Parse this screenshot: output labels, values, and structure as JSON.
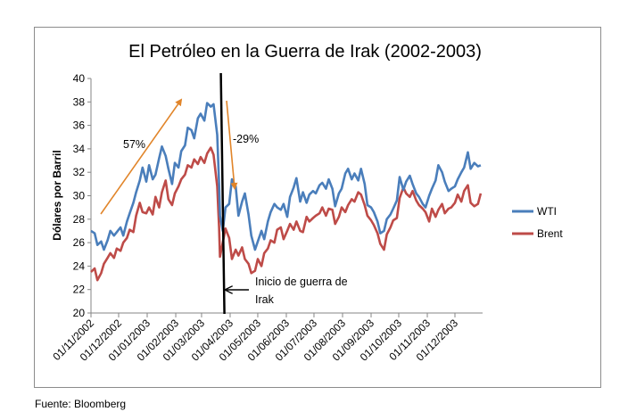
{
  "chart_data": {
    "type": "line",
    "title": "El Petróleo en la Guerra de Irak (2002-2003)",
    "ylabel": "Dólares por Barril",
    "xlabel": "",
    "ylim": [
      20,
      40
    ],
    "yticks": [
      20,
      22,
      24,
      26,
      28,
      30,
      32,
      34,
      36,
      38,
      40
    ],
    "xlim": [
      "2002-11-01",
      "2003-12-31"
    ],
    "xticks": [
      "01/11/2002",
      "01/12/2002",
      "01/01/2003",
      "01/02/2003",
      "01/03/2003",
      "01/04/2003",
      "01/05/2003",
      "01/06/2003",
      "01/07/2003",
      "01/08/2003",
      "01/09/2003",
      "01/10/2003",
      "01/11/2003",
      "01/12/2003"
    ],
    "grid": false,
    "legend_position": "right",
    "series": [
      {
        "name": "WTI",
        "color": "#4a7ebb",
        "points": [
          [
            "2002-11-01",
            27.0
          ],
          [
            "2002-11-05",
            26.8
          ],
          [
            "2002-11-08",
            25.8
          ],
          [
            "2002-11-12",
            26.1
          ],
          [
            "2002-11-15",
            25.4
          ],
          [
            "2002-11-19",
            26.2
          ],
          [
            "2002-11-22",
            27.0
          ],
          [
            "2002-11-26",
            26.6
          ],
          [
            "2002-11-29",
            26.9
          ],
          [
            "2002-12-03",
            27.3
          ],
          [
            "2002-12-06",
            26.6
          ],
          [
            "2002-12-10",
            27.8
          ],
          [
            "2002-12-13",
            28.5
          ],
          [
            "2002-12-17",
            29.4
          ],
          [
            "2002-12-20",
            30.3
          ],
          [
            "2002-12-24",
            31.3
          ],
          [
            "2002-12-27",
            32.4
          ],
          [
            "2002-12-31",
            31.2
          ],
          [
            "2003-01-03",
            32.6
          ],
          [
            "2003-01-07",
            31.4
          ],
          [
            "2003-01-10",
            31.8
          ],
          [
            "2003-01-14",
            33.2
          ],
          [
            "2003-01-17",
            34.2
          ],
          [
            "2003-01-21",
            33.4
          ],
          [
            "2003-01-24",
            32.3
          ],
          [
            "2003-01-28",
            31.0
          ],
          [
            "2003-01-31",
            32.8
          ],
          [
            "2003-02-04",
            32.4
          ],
          [
            "2003-02-07",
            33.8
          ],
          [
            "2003-02-11",
            34.3
          ],
          [
            "2003-02-14",
            35.8
          ],
          [
            "2003-02-18",
            35.6
          ],
          [
            "2003-02-21",
            34.9
          ],
          [
            "2003-02-25",
            36.6
          ],
          [
            "2003-02-28",
            37.0
          ],
          [
            "2003-03-04",
            36.4
          ],
          [
            "2003-03-07",
            37.9
          ],
          [
            "2003-03-11",
            37.6
          ],
          [
            "2003-03-14",
            37.8
          ],
          [
            "2003-03-18",
            35.2
          ],
          [
            "2003-03-20",
            31.0
          ],
          [
            "2003-03-21",
            28.3
          ],
          [
            "2003-03-24",
            27.0
          ],
          [
            "2003-03-27",
            29.0
          ],
          [
            "2003-03-31",
            29.3
          ],
          [
            "2003-04-03",
            31.4
          ],
          [
            "2003-04-07",
            30.8
          ],
          [
            "2003-04-10",
            28.3
          ],
          [
            "2003-04-14",
            29.5
          ],
          [
            "2003-04-17",
            30.2
          ],
          [
            "2003-04-21",
            28.4
          ],
          [
            "2003-04-24",
            26.6
          ],
          [
            "2003-04-28",
            25.4
          ],
          [
            "2003-05-01",
            26.1
          ],
          [
            "2003-05-05",
            27.0
          ],
          [
            "2003-05-08",
            26.3
          ],
          [
            "2003-05-12",
            27.8
          ],
          [
            "2003-05-15",
            28.6
          ],
          [
            "2003-05-19",
            29.3
          ],
          [
            "2003-05-22",
            29.0
          ],
          [
            "2003-05-26",
            28.8
          ],
          [
            "2003-05-29",
            29.3
          ],
          [
            "2003-06-02",
            28.2
          ],
          [
            "2003-06-05",
            29.9
          ],
          [
            "2003-06-09",
            30.7
          ],
          [
            "2003-06-12",
            31.5
          ],
          [
            "2003-06-16",
            29.5
          ],
          [
            "2003-06-19",
            30.3
          ],
          [
            "2003-06-23",
            29.4
          ],
          [
            "2003-06-26",
            30.1
          ],
          [
            "2003-06-30",
            30.4
          ],
          [
            "2003-07-03",
            30.2
          ],
          [
            "2003-07-07",
            30.9
          ],
          [
            "2003-07-10",
            31.1
          ],
          [
            "2003-07-14",
            30.6
          ],
          [
            "2003-07-17",
            31.4
          ],
          [
            "2003-07-21",
            30.6
          ],
          [
            "2003-07-24",
            29.1
          ],
          [
            "2003-07-28",
            30.2
          ],
          [
            "2003-07-31",
            30.6
          ],
          [
            "2003-08-04",
            31.9
          ],
          [
            "2003-08-07",
            32.3
          ],
          [
            "2003-08-11",
            31.4
          ],
          [
            "2003-08-14",
            31.9
          ],
          [
            "2003-08-18",
            31.3
          ],
          [
            "2003-08-21",
            32.3
          ],
          [
            "2003-08-25",
            31.0
          ],
          [
            "2003-08-28",
            29.2
          ],
          [
            "2003-09-01",
            29.0
          ],
          [
            "2003-09-04",
            28.6
          ],
          [
            "2003-09-08",
            27.8
          ],
          [
            "2003-09-11",
            26.8
          ],
          [
            "2003-09-15",
            27.0
          ],
          [
            "2003-09-18",
            28.0
          ],
          [
            "2003-09-22",
            28.4
          ],
          [
            "2003-09-25",
            28.9
          ],
          [
            "2003-09-29",
            29.6
          ],
          [
            "2003-10-02",
            31.6
          ],
          [
            "2003-10-06",
            30.5
          ],
          [
            "2003-10-09",
            31.2
          ],
          [
            "2003-10-13",
            31.7
          ],
          [
            "2003-10-16",
            31.0
          ],
          [
            "2003-10-20",
            30.2
          ],
          [
            "2003-10-23",
            29.9
          ],
          [
            "2003-10-27",
            29.3
          ],
          [
            "2003-10-30",
            29.0
          ],
          [
            "2003-11-03",
            30.0
          ],
          [
            "2003-11-06",
            30.6
          ],
          [
            "2003-11-10",
            31.3
          ],
          [
            "2003-11-13",
            32.6
          ],
          [
            "2003-11-17",
            32.0
          ],
          [
            "2003-11-20",
            31.2
          ],
          [
            "2003-11-24",
            30.4
          ],
          [
            "2003-11-27",
            30.6
          ],
          [
            "2003-12-01",
            30.8
          ],
          [
            "2003-12-04",
            31.4
          ],
          [
            "2003-12-08",
            32.0
          ],
          [
            "2003-12-11",
            32.4
          ],
          [
            "2003-12-15",
            33.7
          ],
          [
            "2003-12-18",
            32.3
          ],
          [
            "2003-12-22",
            32.8
          ],
          [
            "2003-12-26",
            32.5
          ],
          [
            "2003-12-29",
            32.6
          ]
        ]
      },
      {
        "name": "Brent",
        "color": "#be4b48",
        "points": [
          [
            "2002-11-01",
            23.5
          ],
          [
            "2002-11-05",
            23.8
          ],
          [
            "2002-11-08",
            22.8
          ],
          [
            "2002-11-12",
            23.4
          ],
          [
            "2002-11-15",
            24.2
          ],
          [
            "2002-11-19",
            24.7
          ],
          [
            "2002-11-22",
            25.1
          ],
          [
            "2002-11-26",
            24.7
          ],
          [
            "2002-11-29",
            25.5
          ],
          [
            "2002-12-03",
            25.3
          ],
          [
            "2002-12-06",
            26.0
          ],
          [
            "2002-12-10",
            26.4
          ],
          [
            "2002-12-13",
            27.1
          ],
          [
            "2002-12-17",
            26.9
          ],
          [
            "2002-12-20",
            28.3
          ],
          [
            "2002-12-24",
            29.4
          ],
          [
            "2002-12-27",
            28.6
          ],
          [
            "2002-12-31",
            28.5
          ],
          [
            "2003-01-03",
            29.0
          ],
          [
            "2003-01-07",
            28.4
          ],
          [
            "2003-01-10",
            29.9
          ],
          [
            "2003-01-14",
            29.0
          ],
          [
            "2003-01-17",
            30.3
          ],
          [
            "2003-01-21",
            31.3
          ],
          [
            "2003-01-24",
            29.7
          ],
          [
            "2003-01-28",
            29.2
          ],
          [
            "2003-01-31",
            30.2
          ],
          [
            "2003-02-04",
            30.8
          ],
          [
            "2003-02-07",
            31.4
          ],
          [
            "2003-02-11",
            31.8
          ],
          [
            "2003-02-14",
            32.6
          ],
          [
            "2003-02-18",
            32.4
          ],
          [
            "2003-02-21",
            33.1
          ],
          [
            "2003-02-25",
            32.7
          ],
          [
            "2003-02-28",
            33.3
          ],
          [
            "2003-03-04",
            32.8
          ],
          [
            "2003-03-07",
            33.6
          ],
          [
            "2003-03-11",
            34.1
          ],
          [
            "2003-03-14",
            33.5
          ],
          [
            "2003-03-18",
            30.8
          ],
          [
            "2003-03-20",
            27.3
          ],
          [
            "2003-03-21",
            24.8
          ],
          [
            "2003-03-24",
            26.0
          ],
          [
            "2003-03-27",
            27.2
          ],
          [
            "2003-03-31",
            26.4
          ],
          [
            "2003-04-03",
            24.6
          ],
          [
            "2003-04-07",
            25.4
          ],
          [
            "2003-04-10",
            24.9
          ],
          [
            "2003-04-14",
            25.6
          ],
          [
            "2003-04-17",
            24.6
          ],
          [
            "2003-04-21",
            24.2
          ],
          [
            "2003-04-24",
            23.4
          ],
          [
            "2003-04-28",
            23.6
          ],
          [
            "2003-05-01",
            24.6
          ],
          [
            "2003-05-05",
            24.0
          ],
          [
            "2003-05-08",
            25.1
          ],
          [
            "2003-05-12",
            25.5
          ],
          [
            "2003-05-15",
            26.2
          ],
          [
            "2003-05-19",
            26.0
          ],
          [
            "2003-05-22",
            27.1
          ],
          [
            "2003-05-26",
            27.3
          ],
          [
            "2003-05-29",
            26.3
          ],
          [
            "2003-06-02",
            27.0
          ],
          [
            "2003-06-05",
            27.6
          ],
          [
            "2003-06-09",
            27.1
          ],
          [
            "2003-06-12",
            27.8
          ],
          [
            "2003-06-16",
            27.0
          ],
          [
            "2003-06-19",
            26.9
          ],
          [
            "2003-06-23",
            28.2
          ],
          [
            "2003-06-26",
            27.8
          ],
          [
            "2003-06-30",
            28.1
          ],
          [
            "2003-07-03",
            28.3
          ],
          [
            "2003-07-07",
            28.5
          ],
          [
            "2003-07-10",
            29.0
          ],
          [
            "2003-07-14",
            28.3
          ],
          [
            "2003-07-17",
            28.9
          ],
          [
            "2003-07-21",
            28.8
          ],
          [
            "2003-07-24",
            27.6
          ],
          [
            "2003-07-28",
            28.2
          ],
          [
            "2003-07-31",
            29.0
          ],
          [
            "2003-08-04",
            28.6
          ],
          [
            "2003-08-07",
            29.2
          ],
          [
            "2003-08-11",
            29.7
          ],
          [
            "2003-08-14",
            29.5
          ],
          [
            "2003-08-18",
            30.3
          ],
          [
            "2003-08-21",
            30.1
          ],
          [
            "2003-08-25",
            29.2
          ],
          [
            "2003-08-28",
            28.3
          ],
          [
            "2003-09-01",
            27.9
          ],
          [
            "2003-09-04",
            27.5
          ],
          [
            "2003-09-08",
            26.8
          ],
          [
            "2003-09-11",
            25.9
          ],
          [
            "2003-09-15",
            25.4
          ],
          [
            "2003-09-18",
            26.7
          ],
          [
            "2003-09-22",
            27.3
          ],
          [
            "2003-09-25",
            27.9
          ],
          [
            "2003-09-29",
            28.1
          ],
          [
            "2003-10-02",
            29.8
          ],
          [
            "2003-10-06",
            30.7
          ],
          [
            "2003-10-09",
            30.2
          ],
          [
            "2003-10-13",
            29.9
          ],
          [
            "2003-10-16",
            30.4
          ],
          [
            "2003-10-20",
            29.6
          ],
          [
            "2003-10-23",
            29.2
          ],
          [
            "2003-10-27",
            28.9
          ],
          [
            "2003-10-30",
            28.6
          ],
          [
            "2003-11-03",
            27.8
          ],
          [
            "2003-11-06",
            28.9
          ],
          [
            "2003-11-10",
            28.2
          ],
          [
            "2003-11-13",
            28.8
          ],
          [
            "2003-11-17",
            29.3
          ],
          [
            "2003-11-20",
            28.5
          ],
          [
            "2003-11-24",
            28.9
          ],
          [
            "2003-11-27",
            29.0
          ],
          [
            "2003-12-01",
            29.4
          ],
          [
            "2003-12-04",
            30.1
          ],
          [
            "2003-12-08",
            29.5
          ],
          [
            "2003-12-11",
            30.4
          ],
          [
            "2003-12-15",
            30.9
          ],
          [
            "2003-12-18",
            29.4
          ],
          [
            "2003-12-22",
            29.1
          ],
          [
            "2003-12-26",
            29.3
          ],
          [
            "2003-12-29",
            30.2
          ]
        ]
      }
    ],
    "annotations": [
      {
        "text": "57%",
        "type": "arrow-up",
        "color": "#e1852a"
      },
      {
        "text": "-29%",
        "type": "arrow-down",
        "color": "#e1852a"
      },
      {
        "text_lines": [
          "Inicio de guerra de",
          "Irak"
        ],
        "type": "arrow-left",
        "color": "#000000"
      }
    ],
    "event_line": {
      "date": "2003-03-20",
      "color": "#000000"
    }
  },
  "source_note": "Fuente: Bloomberg"
}
